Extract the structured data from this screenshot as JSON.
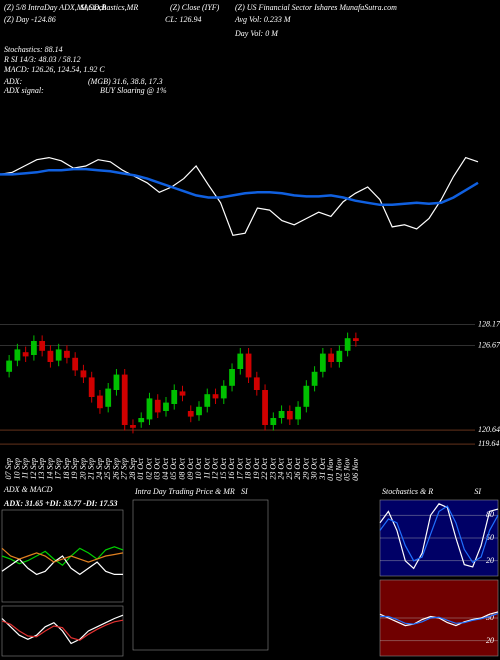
{
  "header": {
    "lines": [
      "(Z) 5/8 IntraDay ADX,MACD,B",
      "SI,Stochastics,MR",
      "(Z) Close (IYF)",
      "(Z) US Financial Sector Ishares MunafaSutra.com",
      "(Z) Day -124.86",
      "CL: 126.94",
      "Avg Vol: 0.233 M",
      "Day Vol: 0  M",
      "Stochastics: 88.14",
      "R    SI 14/3: 48.03 / 58.12",
      "MACD: 126.26, 124.54, 1.92  C",
      "ADX:",
      "(MGB) 31.6, 38.8, 17.3",
      "ADX signal:",
      "BUY Sloaring @ 1%"
    ]
  },
  "chart_data": [
    {
      "type": "line",
      "ylim": [
        0,
        100
      ],
      "series": [
        {
          "color": "#ffffff",
          "values": [
            72,
            74,
            80,
            86,
            88,
            85,
            78,
            80,
            86,
            84,
            76,
            70,
            64,
            55,
            60,
            68,
            80,
            62,
            45,
            14,
            16,
            40,
            38,
            28,
            24,
            30,
            36,
            32,
            46,
            54,
            60,
            48,
            22,
            24,
            20,
            30,
            48,
            70,
            88,
            84
          ]
        },
        {
          "color": "#1060e0",
          "values": [
            72,
            72,
            73,
            74,
            76,
            76,
            77,
            77,
            76,
            75,
            73,
            71,
            68,
            64,
            60,
            56,
            52,
            50,
            50,
            52,
            54,
            55,
            55,
            54,
            52,
            51,
            51,
            52,
            50,
            47,
            45,
            43,
            43,
            44,
            45,
            44,
            45,
            50,
            57,
            64
          ]
        }
      ]
    },
    {
      "type": "candlestick",
      "up_color": "#00c000",
      "down_color": "#d00000",
      "ylim": [
        119,
        129
      ],
      "yticks": [
        128.17,
        126.67,
        120.64,
        119.64
      ],
      "grid_colors": [
        "#606060",
        "#606060",
        "#a0522d",
        "#a0522d"
      ],
      "categories": [
        "07 Sep",
        "10 Sep",
        "11 Sep",
        "12 Sep",
        "13 Sep",
        "14 Sep",
        "17 Sep",
        "18 Sep",
        "19 Sep",
        "20 Sep",
        "21 Sep",
        "24 Sep",
        "25 Sep",
        "26 Sep",
        "27 Sep",
        "28 Sep",
        "01 Oct",
        "02 Oct",
        "03 Oct",
        "04 Oct",
        "05 Oct",
        "08 Oct",
        "09 Oct",
        "10 Oct",
        "11 Oct",
        "12 Oct",
        "15 Oct",
        "16 Oct",
        "17 Oct",
        "18 Oct",
        "19 Oct",
        "22 Oct",
        "23 Oct",
        "24 Oct",
        "25 Oct",
        "26 Oct",
        "29 Oct",
        "30 Oct",
        "31 Oct",
        "01 Nov",
        "02 Nov",
        "05 Nov",
        "06 Nov"
      ],
      "open": [
        124.8,
        125.6,
        126.2,
        126.0,
        127.0,
        126.3,
        125.6,
        126.3,
        125.8,
        124.9,
        124.4,
        123.1,
        122.3,
        123.5,
        124.6,
        121.0,
        121.2,
        121.4,
        122.8,
        122.0,
        122.5,
        123.4,
        122.0,
        121.7,
        122.3,
        123.2,
        122.9,
        123.8,
        125.0,
        126.1,
        124.4,
        123.5,
        121.0,
        121.5,
        122.0,
        121.4,
        122.3,
        123.8,
        124.8,
        126.1,
        125.5,
        126.3,
        127.2
      ],
      "high": [
        126.0,
        126.8,
        126.6,
        127.4,
        127.4,
        126.7,
        126.8,
        126.7,
        126.2,
        125.3,
        124.8,
        123.5,
        124.0,
        125.0,
        125.0,
        121.4,
        121.9,
        123.3,
        123.2,
        123.0,
        123.9,
        123.8,
        122.4,
        122.7,
        123.6,
        123.6,
        124.2,
        125.4,
        126.5,
        126.5,
        124.8,
        123.9,
        121.9,
        122.4,
        122.4,
        122.7,
        124.2,
        125.2,
        126.5,
        126.5,
        126.7,
        127.6,
        127.6
      ],
      "low": [
        124.4,
        125.2,
        125.5,
        125.6,
        125.9,
        125.1,
        125.2,
        125.4,
        124.5,
        124.0,
        122.6,
        121.8,
        121.9,
        123.1,
        120.6,
        120.4,
        120.8,
        121.0,
        121.5,
        121.6,
        122.1,
        122.7,
        121.2,
        121.3,
        121.9,
        122.5,
        122.5,
        123.4,
        124.6,
        124.0,
        123.1,
        120.6,
        120.6,
        121.1,
        121.0,
        121.0,
        121.9,
        123.4,
        124.4,
        125.1,
        125.1,
        125.9,
        126.6
      ],
      "close": [
        125.6,
        126.4,
        125.9,
        127.0,
        126.3,
        125.5,
        126.4,
        125.8,
        124.9,
        124.4,
        123.0,
        122.2,
        123.6,
        124.6,
        121.0,
        120.8,
        121.5,
        122.9,
        121.9,
        122.6,
        123.5,
        123.1,
        121.6,
        122.3,
        123.2,
        122.9,
        123.8,
        125.0,
        126.1,
        124.4,
        123.5,
        121.0,
        121.5,
        122.0,
        121.4,
        122.3,
        123.8,
        124.8,
        126.1,
        125.5,
        126.3,
        127.2,
        127.0
      ]
    },
    {
      "type": "line",
      "title": "ADX  & MACD",
      "subtitle": "ADX: 31.65 +DI: 33.77 -DI: 17.53",
      "ylim": [
        0,
        60
      ],
      "series": [
        {
          "color": "#00d000",
          "values": [
            30,
            28,
            25,
            27,
            30,
            33,
            28,
            24,
            30,
            35,
            32,
            28,
            34,
            36,
            34
          ]
        },
        {
          "color": "#ffffff",
          "values": [
            20,
            24,
            28,
            22,
            18,
            20,
            26,
            30,
            22,
            18,
            22,
            26,
            20,
            18,
            18
          ]
        },
        {
          "color": "#e08020",
          "values": [
            35,
            30,
            28,
            30,
            32,
            30,
            26,
            28,
            30,
            28,
            26,
            28,
            30,
            31,
            32
          ]
        }
      ]
    },
    {
      "type": "line",
      "ylim": [
        -3,
        3
      ],
      "series": [
        {
          "color": "#ffffff",
          "values": [
            1.5,
            0.5,
            -0.5,
            -1,
            -0.5,
            0.5,
            1,
            0,
            -1.5,
            -1,
            0,
            0.5,
            1,
            1.5,
            1.9
          ]
        },
        {
          "color": "#e03030",
          "values": [
            1.2,
            0.8,
            0,
            -0.6,
            -0.7,
            0,
            0.6,
            0.4,
            -0.8,
            -1.1,
            -0.4,
            0.2,
            0.7,
            1.1,
            1.3
          ]
        }
      ]
    },
    {
      "type": "blank",
      "title": "Intra Day Trading Price  & MR",
      "subtitle": "SI"
    },
    {
      "type": "line",
      "title": "Stochastics & R",
      "subtitle": "SI",
      "background": "#000066",
      "ylim": [
        0,
        100
      ],
      "yticks": [
        20,
        50,
        80
      ],
      "series": [
        {
          "color": "#ffffff",
          "values": [
            70,
            85,
            60,
            20,
            10,
            30,
            80,
            95,
            90,
            50,
            15,
            12,
            40,
            85,
            88
          ]
        },
        {
          "color": "#2070ff",
          "values": [
            60,
            75,
            70,
            40,
            20,
            25,
            55,
            85,
            92,
            70,
            35,
            18,
            25,
            60,
            80
          ]
        }
      ]
    },
    {
      "type": "line",
      "background": "#700000",
      "ylim": [
        0,
        100
      ],
      "yticks": [
        20,
        50
      ],
      "series": [
        {
          "color": "#ffffff",
          "values": [
            55,
            50,
            45,
            40,
            42,
            48,
            52,
            50,
            44,
            40,
            45,
            48,
            50,
            55,
            58
          ]
        },
        {
          "color": "#2070ff",
          "values": [
            52,
            52,
            48,
            43,
            42,
            45,
            50,
            51,
            47,
            43,
            44,
            47,
            49,
            52,
            56
          ]
        }
      ]
    }
  ]
}
